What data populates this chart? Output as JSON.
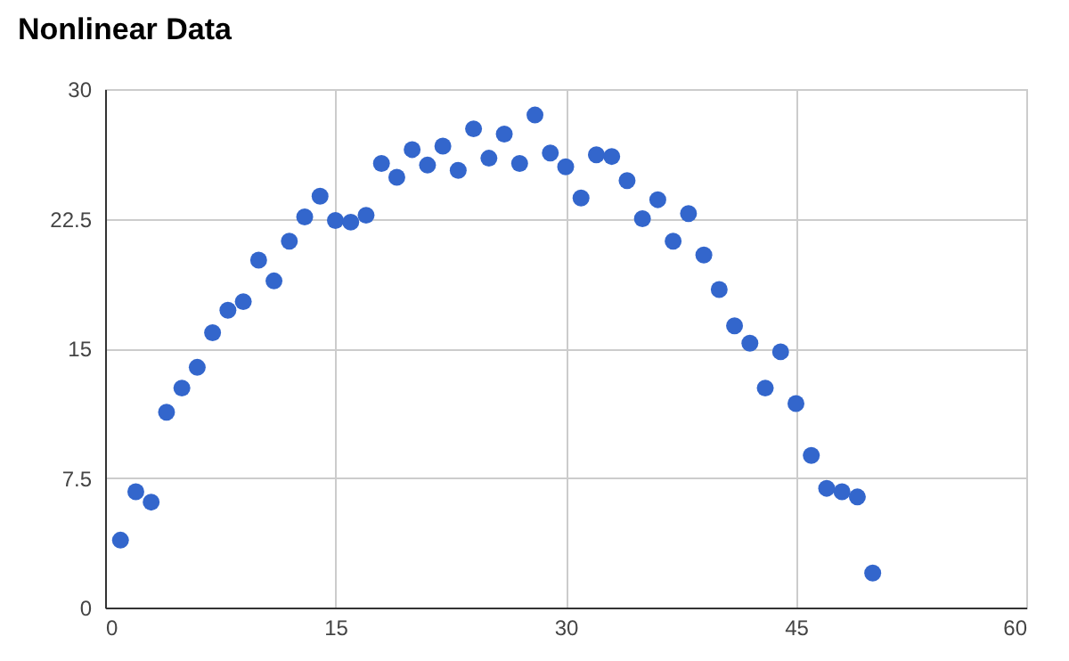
{
  "chart_data": {
    "type": "scatter",
    "title": "Nonlinear Data",
    "x": [
      1,
      2,
      3,
      4,
      5,
      6,
      7,
      8,
      9,
      10,
      11,
      12,
      13,
      14,
      15,
      16,
      17,
      18,
      19,
      20,
      21,
      22,
      23,
      24,
      25,
      26,
      27,
      28,
      29,
      30,
      31,
      32,
      33,
      34,
      35,
      36,
      37,
      38,
      39,
      40,
      41,
      42,
      43,
      44,
      45,
      46,
      47,
      48,
      49,
      50
    ],
    "series": [
      {
        "color": "#3366cc",
        "values": [
          3.9,
          6.7,
          6.1,
          11.3,
          12.7,
          13.9,
          15.9,
          17.2,
          17.7,
          20.1,
          18.9,
          21.2,
          22.6,
          23.8,
          22.4,
          22.3,
          22.7,
          25.7,
          24.9,
          26.5,
          25.6,
          26.7,
          25.3,
          27.7,
          26.0,
          27.4,
          25.7,
          28.5,
          26.3,
          25.5,
          23.7,
          26.2,
          26.1,
          24.7,
          22.5,
          23.6,
          21.2,
          22.8,
          20.4,
          18.4,
          16.3,
          15.3,
          12.7,
          14.8,
          11.8,
          8.8,
          6.9,
          6.7,
          6.4,
          2.0
        ]
      }
    ],
    "xlim": [
      0,
      60
    ],
    "xticks": [
      0,
      15,
      30,
      45,
      60
    ],
    "ylim": [
      0,
      30
    ],
    "yticks": [
      0,
      7.5,
      15,
      22.5,
      30
    ],
    "grid": true,
    "marker": "circle"
  }
}
